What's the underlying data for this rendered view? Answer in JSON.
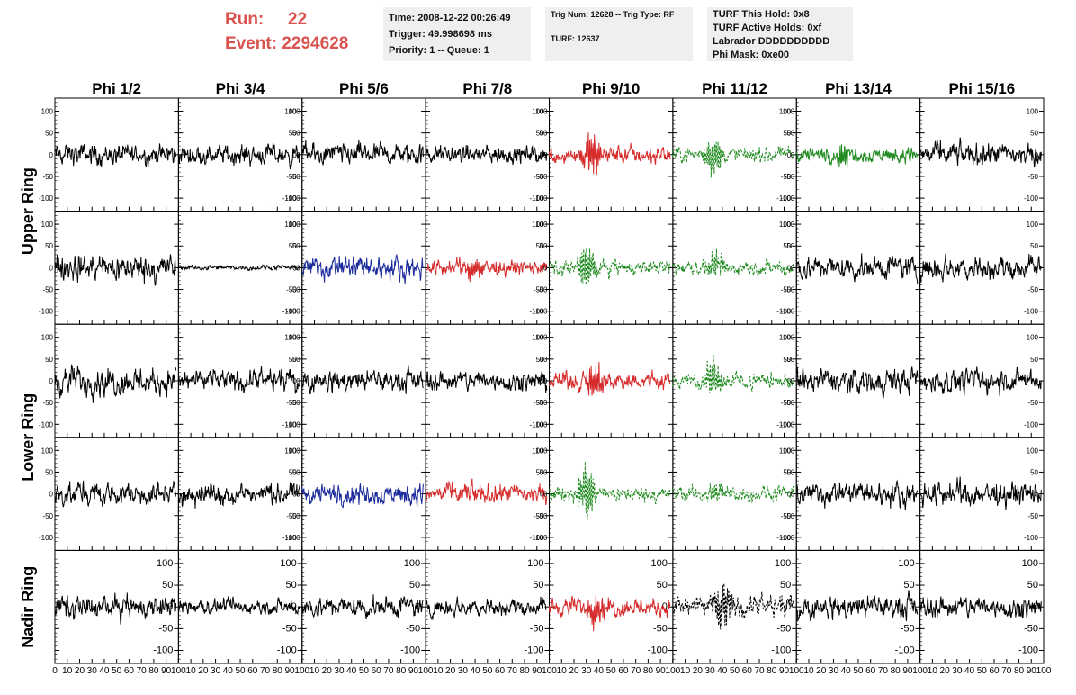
{
  "header": {
    "run_label": "Run:",
    "run_value": "22",
    "event_label": "Event:",
    "event_value": "2294628"
  },
  "info1": {
    "time": "Time: 2008-12-22 00:26:49",
    "trigger": "Trigger: 49.998698 ms",
    "priority": "Priority: 1 -- Queue: 1"
  },
  "info2": {
    "trig": "Trig Num: 12628 -- Trig Type: RF",
    "turf": "TURF: 12637"
  },
  "info3": {
    "hold": "TURF This Hold: 0x8",
    "active": "TURF Active Holds: 0xf",
    "labrador": "Labrador DDDDDDDDDD",
    "mask": "Phi Mask: 0xe00"
  },
  "chart_data": {
    "type": "line",
    "columns": [
      "Phi 1/2",
      "Phi 3/4",
      "Phi 5/6",
      "Phi 7/8",
      "Phi 9/10",
      "Phi 11/12",
      "Phi 13/14",
      "Phi 15/16"
    ],
    "ring_labels": [
      "Upper Ring",
      "Lower Ring",
      "Nadir Ring"
    ],
    "xlim": [
      0,
      100
    ],
    "ylim": [
      -130,
      130
    ],
    "y_ticks": [
      100,
      50,
      0,
      -50,
      -100
    ],
    "x_tick_labels": [
      "0",
      "10",
      "20",
      "30",
      "40",
      "50",
      "60",
      "70",
      "80",
      "90",
      "100"
    ],
    "grid": false,
    "trace_colors": {
      "black": "#000000",
      "red": "#d62b2b",
      "green": "#1e8a1e",
      "blue": "#1a2a9a"
    },
    "rows": [
      [
        {
          "color": "black",
          "style": "solid",
          "amp": 14,
          "burst": 0,
          "center": 40
        },
        {
          "color": "black",
          "style": "solid",
          "amp": 13,
          "burst": 0,
          "center": 40
        },
        {
          "color": "black",
          "style": "solid",
          "amp": 14,
          "burst": 0,
          "center": 40
        },
        {
          "color": "black",
          "style": "solid",
          "amp": 12,
          "burst": 0,
          "center": 40
        },
        {
          "color": "red",
          "style": "solid",
          "amp": 12,
          "burst": 50,
          "center": 35
        },
        {
          "color": "green",
          "style": "dashed",
          "amp": 10,
          "burst": 55,
          "center": 33
        },
        {
          "color": "green",
          "style": "solid",
          "amp": 10,
          "burst": 28,
          "center": 38
        },
        {
          "color": "black",
          "style": "solid",
          "amp": 15,
          "burst": 0,
          "center": 40
        }
      ],
      [
        {
          "color": "black",
          "style": "solid",
          "amp": 18,
          "burst": 0,
          "center": 40
        },
        {
          "color": "black",
          "style": "solid",
          "amp": 3,
          "burst": 0,
          "center": 40
        },
        {
          "color": "blue",
          "style": "solid",
          "amp": 15,
          "burst": 12,
          "center": 40
        },
        {
          "color": "red",
          "style": "solid",
          "amp": 10,
          "burst": 28,
          "center": 40
        },
        {
          "color": "green",
          "style": "dashed",
          "amp": 10,
          "burst": 65,
          "center": 30
        },
        {
          "color": "green",
          "style": "dashed",
          "amp": 10,
          "burst": 30,
          "center": 35
        },
        {
          "color": "black",
          "style": "solid",
          "amp": 15,
          "burst": 0,
          "center": 40
        },
        {
          "color": "black",
          "style": "solid",
          "amp": 15,
          "burst": 0,
          "center": 40
        }
      ],
      [
        {
          "color": "black",
          "style": "solid",
          "amp": 18,
          "burst": 0,
          "center": 40
        },
        {
          "color": "black",
          "style": "solid",
          "amp": 14,
          "burst": 0,
          "center": 40
        },
        {
          "color": "black",
          "style": "solid",
          "amp": 14,
          "burst": 0,
          "center": 40
        },
        {
          "color": "black",
          "style": "solid",
          "amp": 13,
          "burst": 0,
          "center": 40
        },
        {
          "color": "red",
          "style": "solid",
          "amp": 12,
          "burst": 40,
          "center": 38
        },
        {
          "color": "green",
          "style": "dashed",
          "amp": 10,
          "burst": 50,
          "center": 33
        },
        {
          "color": "black",
          "style": "solid",
          "amp": 16,
          "burst": 0,
          "center": 40
        },
        {
          "color": "black",
          "style": "solid",
          "amp": 15,
          "burst": 0,
          "center": 40
        }
      ],
      [
        {
          "color": "black",
          "style": "solid",
          "amp": 15,
          "burst": 0,
          "center": 40
        },
        {
          "color": "black",
          "style": "solid",
          "amp": 14,
          "burst": 0,
          "center": 40
        },
        {
          "color": "blue",
          "style": "solid",
          "amp": 14,
          "burst": 8,
          "center": 45
        },
        {
          "color": "red",
          "style": "solid",
          "amp": 13,
          "burst": 12,
          "center": 35
        },
        {
          "color": "green",
          "style": "dashed",
          "amp": 10,
          "burst": 70,
          "center": 30
        },
        {
          "color": "green",
          "style": "dashed",
          "amp": 10,
          "burst": 25,
          "center": 35
        },
        {
          "color": "black",
          "style": "solid",
          "amp": 15,
          "burst": 0,
          "center": 40
        },
        {
          "color": "black",
          "style": "solid",
          "amp": 16,
          "burst": 0,
          "center": 40
        }
      ],
      [
        {
          "color": "black",
          "style": "solid",
          "amp": 15,
          "burst": 0,
          "center": 40
        },
        {
          "color": "black",
          "style": "solid",
          "amp": 10,
          "burst": 0,
          "center": 40
        },
        {
          "color": "black",
          "style": "solid",
          "amp": 13,
          "burst": 0,
          "center": 40
        },
        {
          "color": "black",
          "style": "solid",
          "amp": 11,
          "burst": 0,
          "center": 40
        },
        {
          "color": "red",
          "style": "solid",
          "amp": 12,
          "burst": 40,
          "center": 38
        },
        {
          "color": "black",
          "style": "dashed",
          "amp": 14,
          "burst": 60,
          "center": 40
        },
        {
          "color": "black",
          "style": "solid",
          "amp": 15,
          "burst": 0,
          "center": 40
        },
        {
          "color": "black",
          "style": "solid",
          "amp": 14,
          "burst": 0,
          "center": 40
        }
      ]
    ]
  }
}
